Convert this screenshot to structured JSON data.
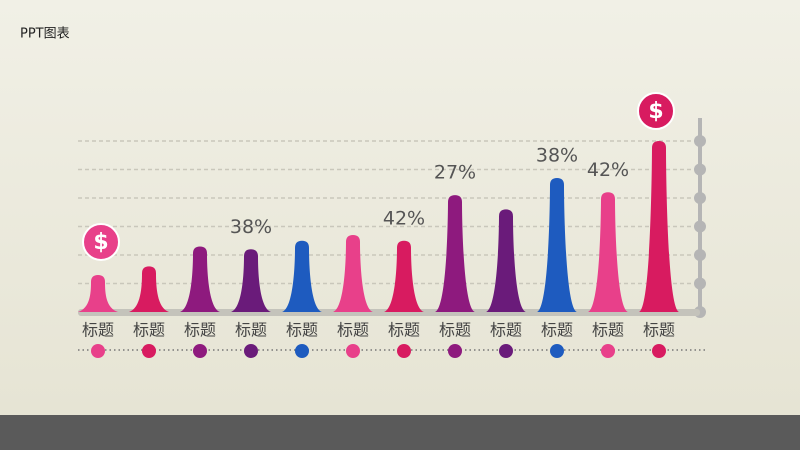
{
  "title": "PPT图表",
  "chart_data": {
    "type": "cone",
    "categories": [
      "标题",
      "标题",
      "标题",
      "标题",
      "标题",
      "标题",
      "标题",
      "标题",
      "标题",
      "标题",
      "标题",
      "标题"
    ],
    "values": [
      1.3,
      1.6,
      2.3,
      2.2,
      2.5,
      2.7,
      2.5,
      4.1,
      3.6,
      4.7,
      4.2,
      6.0
    ],
    "bar_labels": [
      null,
      null,
      null,
      "38%",
      null,
      null,
      "42%",
      "27%",
      null,
      "38%",
      "42%",
      null
    ],
    "colors": [
      "#e8408a",
      "#d81b60",
      "#8e1a7e",
      "#6a1b7a",
      "#1e5bbf",
      "#e8408a",
      "#d81b60",
      "#8e1a7e",
      "#6a1b7a",
      "#1e5bbf",
      "#e8408a",
      "#d81b60"
    ],
    "badge": "$",
    "ylim": [
      0,
      6
    ],
    "yticks": [
      0,
      1,
      2,
      3,
      4,
      5,
      6
    ],
    "grid": true
  }
}
